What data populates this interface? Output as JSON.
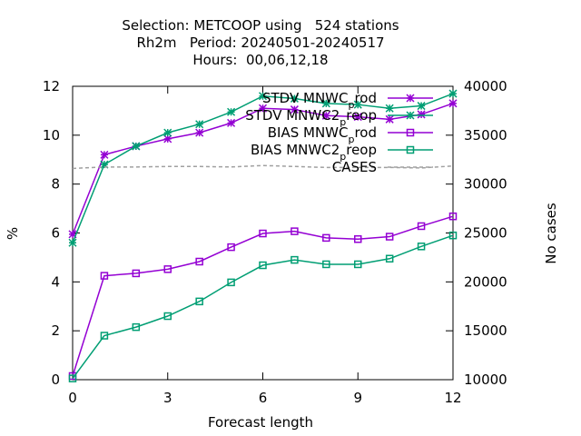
{
  "chart_data": {
    "type": "line",
    "title_lines": [
      "Selection: METCOOP using   524 stations",
      "Rh2m   Period: 20240501-20240517",
      "Hours:  00,06,12,18"
    ],
    "xlabel": "Forecast length",
    "ylabel": "%",
    "y2label": "No cases",
    "xlim": [
      0,
      12
    ],
    "ylim": [
      0,
      12
    ],
    "y2lim": [
      10000,
      40000
    ],
    "xticks": [
      0,
      3,
      6,
      9,
      12
    ],
    "yticks": [
      0,
      2,
      4,
      6,
      8,
      10,
      12
    ],
    "y2ticks": [
      10000,
      15000,
      20000,
      25000,
      30000,
      35000,
      40000
    ],
    "legend_position": "top-right",
    "x": [
      0,
      1,
      2,
      3,
      4,
      5,
      6,
      7,
      8,
      9,
      10,
      11,
      12
    ],
    "series": [
      {
        "name": "STDV MNWC",
        "sub": "p",
        "suffix": "rod",
        "color": "#9400d3",
        "marker": "star",
        "axis": "y",
        "values": [
          5.95,
          9.2,
          9.55,
          9.85,
          10.1,
          10.5,
          11.1,
          11.05,
          10.8,
          10.75,
          10.65,
          10.85,
          11.3
        ]
      },
      {
        "name": "STDV MNWC2",
        "sub": "p",
        "suffix": "reop",
        "color": "#009e73",
        "marker": "star",
        "axis": "y",
        "values": [
          5.6,
          8.8,
          9.55,
          10.1,
          10.45,
          10.95,
          11.6,
          11.5,
          11.3,
          11.25,
          11.1,
          11.2,
          11.7
        ]
      },
      {
        "name": "BIAS MNWC",
        "sub": "p",
        "suffix": "rod",
        "color": "#9400d3",
        "marker": "square",
        "axis": "y",
        "values": [
          0.15,
          4.25,
          4.35,
          4.52,
          4.83,
          5.42,
          5.98,
          6.07,
          5.8,
          5.75,
          5.85,
          6.28,
          6.68
        ]
      },
      {
        "name": "BIAS MNWC2",
        "sub": "p",
        "suffix": "reop",
        "color": "#009e73",
        "marker": "square",
        "axis": "y",
        "values": [
          0.05,
          1.8,
          2.15,
          2.6,
          3.2,
          3.98,
          4.68,
          4.9,
          4.72,
          4.72,
          4.95,
          5.45,
          5.9
        ]
      },
      {
        "name": "CASES",
        "color": "#a0a0a0",
        "marker": "none",
        "dashed": true,
        "axis": "y2",
        "values": [
          31600,
          31750,
          31750,
          31800,
          31800,
          31750,
          31900,
          31800,
          31700,
          31700,
          31700,
          31650,
          31850
        ]
      }
    ]
  }
}
